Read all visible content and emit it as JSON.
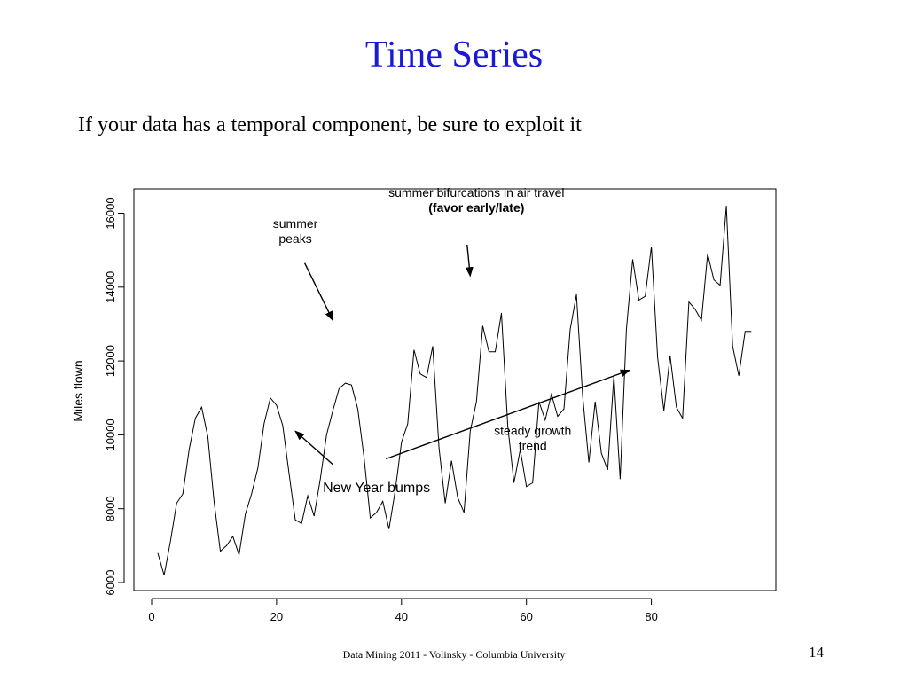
{
  "slide": {
    "title": "Time Series",
    "subtitle": "If your data has a temporal component, be sure to exploit it",
    "footer": "Data Mining 2011  - Volinsky - Columbia University",
    "page_number": "14"
  },
  "chart_data": {
    "type": "line",
    "title": "",
    "xlabel": "",
    "ylabel": "Miles flown",
    "xlim": [
      0,
      96
    ],
    "ylim": [
      6000,
      16000
    ],
    "x_ticks": [
      0,
      20,
      40,
      60,
      80
    ],
    "y_ticks": [
      6000,
      8000,
      10000,
      12000,
      14000,
      16000
    ],
    "grid": false,
    "line_color": "#000000",
    "x": [
      1,
      2,
      3,
      4,
      5,
      6,
      7,
      8,
      9,
      10,
      11,
      12,
      13,
      14,
      15,
      16,
      17,
      18,
      19,
      20,
      21,
      22,
      23,
      24,
      25,
      26,
      27,
      28,
      29,
      30,
      31,
      32,
      33,
      34,
      35,
      36,
      37,
      38,
      39,
      40,
      41,
      42,
      43,
      44,
      45,
      46,
      47,
      48,
      49,
      50,
      51,
      52,
      53,
      54,
      55,
      56,
      57,
      58,
      59,
      60,
      61,
      62,
      63,
      64,
      65,
      66,
      67,
      68,
      69,
      70,
      71,
      72,
      73,
      74,
      75,
      76,
      77,
      78,
      79,
      80,
      81,
      82,
      83,
      84,
      85,
      86,
      87,
      88,
      89,
      90,
      91,
      92,
      93,
      94,
      95,
      96
    ],
    "values": [
      6800,
      6200,
      7100,
      8150,
      8400,
      9600,
      10450,
      10750,
      9950,
      8200,
      6850,
      7000,
      7250,
      6750,
      7850,
      8400,
      9100,
      10300,
      11000,
      10800,
      10250,
      8950,
      7700,
      7600,
      8350,
      7800,
      8800,
      10000,
      10650,
      11250,
      11400,
      11350,
      10700,
      9400,
      7750,
      7900,
      8200,
      7450,
      8500,
      9800,
      10300,
      12300,
      11650,
      11550,
      12400,
      9650,
      8150,
      9300,
      8300,
      7900,
      10100,
      10900,
      12950,
      12250,
      12250,
      13300,
      10250,
      8700,
      9600,
      8600,
      8700,
      10900,
      10400,
      11100,
      10500,
      10700,
      12850,
      13800,
      11050,
      9250,
      10900,
      9500,
      9050,
      11600,
      8800,
      12850,
      14750,
      13650,
      13750,
      15100,
      12100,
      10650,
      12150,
      10750,
      10450,
      13600,
      13400,
      13100,
      14900,
      14200,
      14050,
      16200,
      12400,
      11600,
      12800,
      12800
    ],
    "annotations": [
      {
        "text_lines": [
          "summer bifurcations in air travel"
        ],
        "bold_lines": [
          "(favor early/late)"
        ],
        "label_x": 52,
        "label_y": 16450,
        "arrow_from": [
          50.5,
          15150
        ],
        "arrow_to": [
          51,
          14300
        ]
      },
      {
        "text_lines": [
          "summer",
          "peaks"
        ],
        "bold_lines": [],
        "label_x": 23,
        "label_y": 15600,
        "arrow_from": [
          24.5,
          14650
        ],
        "arrow_to": [
          29,
          13100
        ]
      },
      {
        "text_lines": [
          "steady growth",
          "trend"
        ],
        "bold_lines": [],
        "label_x": 61,
        "label_y": 10000,
        "arrow_from": [
          37.5,
          9350
        ],
        "arrow_to": [
          76.5,
          11750
        ]
      },
      {
        "text_lines": [
          "New Year bumps"
        ],
        "bold_lines": [],
        "label_x": 36,
        "label_y": 8450,
        "arrow_from": [
          29,
          9200
        ],
        "arrow_to": [
          23,
          10100
        ],
        "large": true
      }
    ]
  }
}
